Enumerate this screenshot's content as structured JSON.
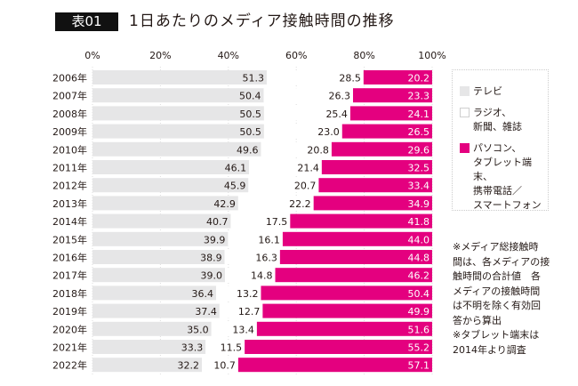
{
  "title": {
    "badge": "表01",
    "text": "1日あたりのメディア接触時間の推移"
  },
  "chart_data": {
    "type": "bar",
    "orientation": "horizontal",
    "stacked": true,
    "percent": true,
    "title": "1日あたりのメディア接触時間の推移",
    "xlabel": "",
    "ylabel": "",
    "xlim": [
      0,
      100
    ],
    "x_ticks": [
      "0%",
      "20%",
      "40%",
      "60%",
      "80%",
      "100%"
    ],
    "grid": true,
    "legend_position": "right",
    "categories": [
      "2006年",
      "2007年",
      "2008年",
      "2009年",
      "2010年",
      "2011年",
      "2012年",
      "2013年",
      "2014年",
      "2015年",
      "2016年",
      "2017年",
      "2018年",
      "2019年",
      "2020年",
      "2021年",
      "2022年"
    ],
    "series": [
      {
        "name": "テレビ",
        "color": "#e6e6e7",
        "values": [
          51.3,
          50.4,
          50.5,
          50.5,
          49.6,
          46.1,
          45.9,
          42.9,
          40.7,
          39.9,
          38.9,
          39.0,
          36.4,
          37.4,
          35.0,
          33.3,
          32.2
        ]
      },
      {
        "name": "ラジオ、新聞、雑誌",
        "color": "#ffffff",
        "values": [
          28.5,
          26.3,
          25.4,
          23.0,
          20.8,
          21.4,
          20.7,
          22.2,
          17.5,
          16.1,
          16.3,
          14.8,
          13.2,
          12.7,
          13.4,
          11.5,
          10.7
        ]
      },
      {
        "name": "パソコン、タブレット端末、携帯電話／スマートフォン",
        "color": "#e4007f",
        "values": [
          20.2,
          23.3,
          24.1,
          26.5,
          29.6,
          32.5,
          33.4,
          34.9,
          41.8,
          44.0,
          44.8,
          46.2,
          50.4,
          49.9,
          51.6,
          55.2,
          57.1
        ]
      }
    ]
  },
  "legend": [
    {
      "label": "テレビ",
      "color": "#e6e6e7"
    },
    {
      "label": "ラジオ、\n新聞、雑誌",
      "color": "#ffffff"
    },
    {
      "label": "パソコン、\nタブレット端末、\n携帯電話／\nスマートフォン",
      "color": "#e4007f"
    }
  ],
  "note": "※メディア総接触時\n間は、各メディアの接\n触時間の合計値　各\nメディアの接触時間\nは不明を除く有効回\n答から算出\n※タブレット端末は\n2014年より調査"
}
